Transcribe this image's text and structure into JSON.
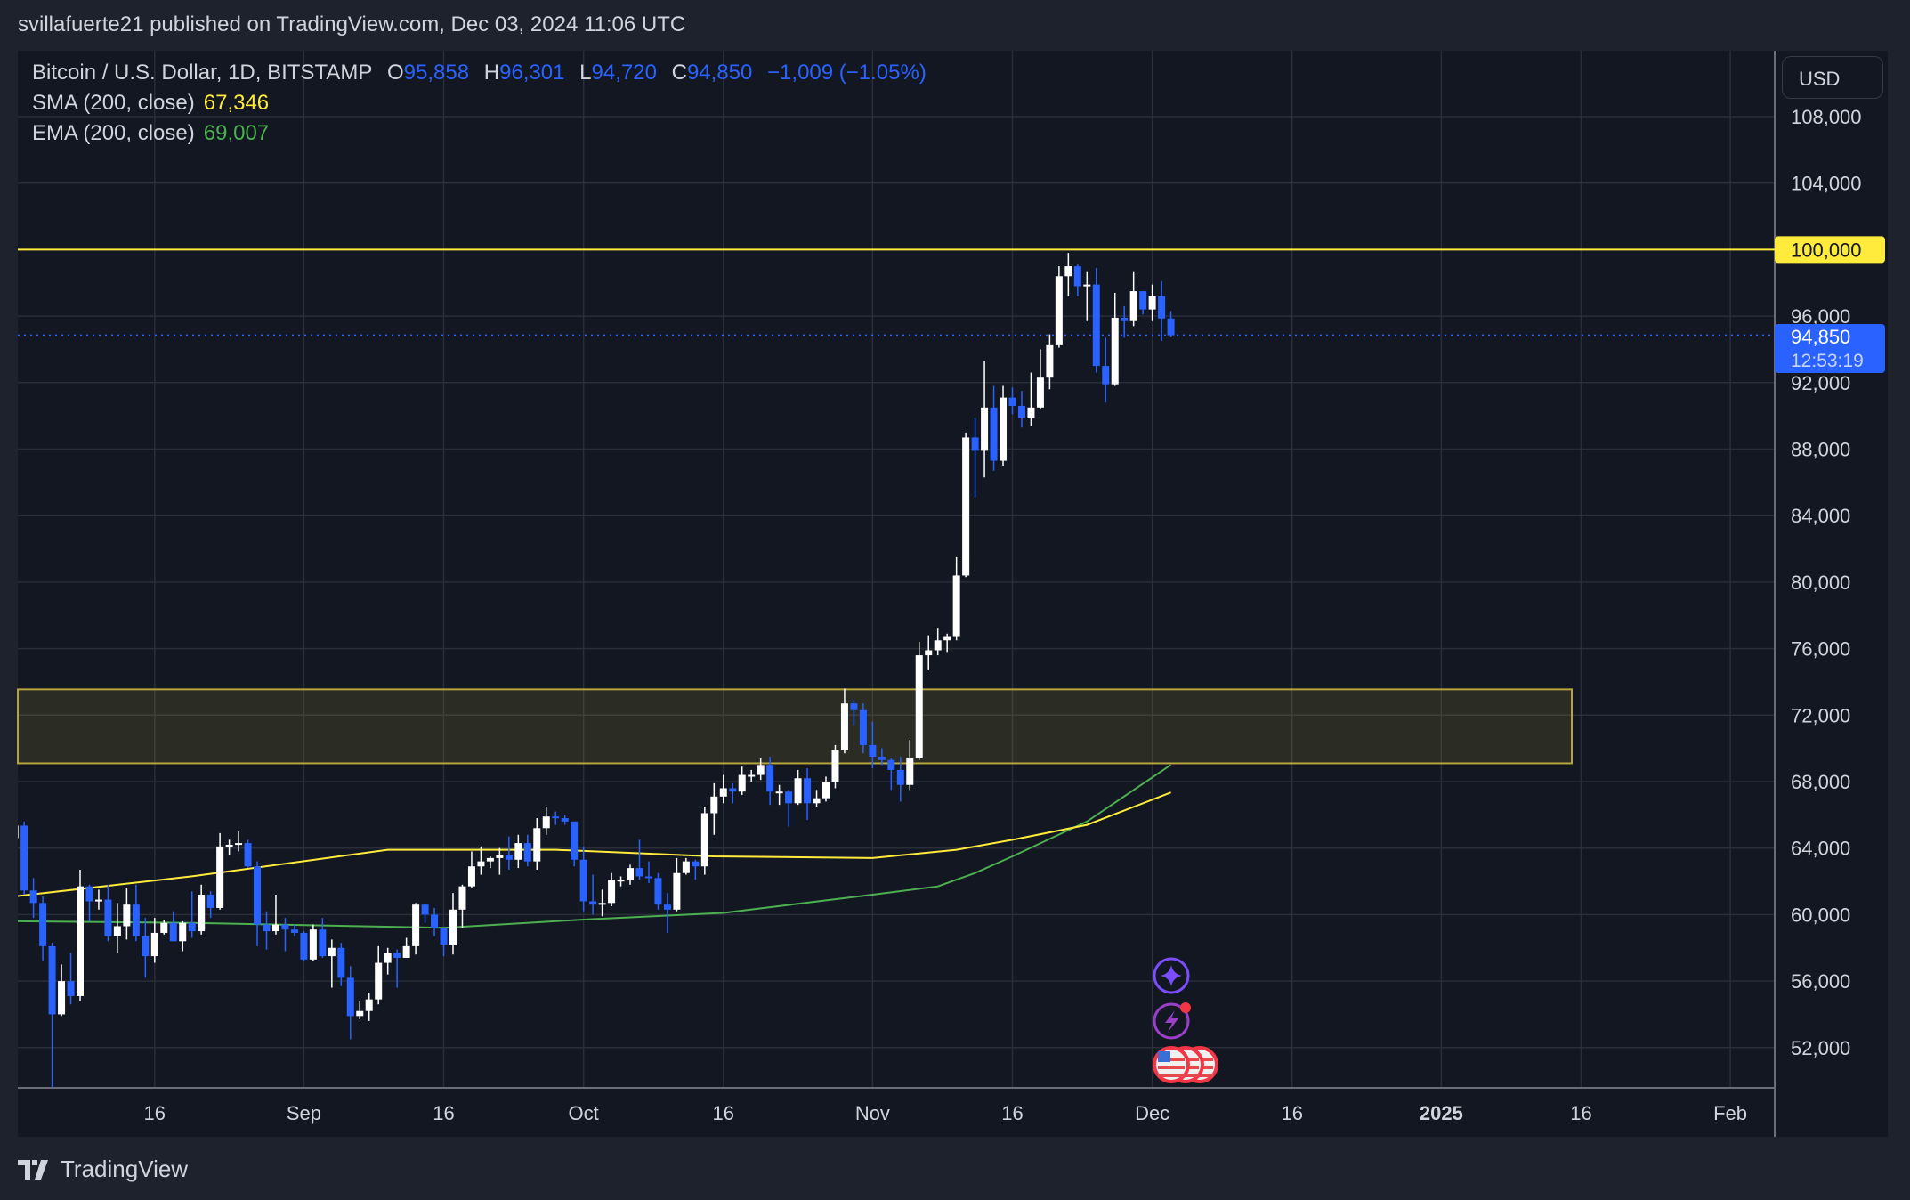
{
  "header": {
    "published": "svillafuerte21 published on TradingView.com, Dec 03, 2024 11:06 UTC"
  },
  "legend": {
    "symbol": "Bitcoin / U.S. Dollar, 1D, BITSTAMP",
    "open_label": "O",
    "open": "95,858",
    "high_label": "H",
    "high": "96,301",
    "low_label": "L",
    "low": "94,720",
    "close_label": "C",
    "close": "94,850",
    "change": "−1,009 (−1.05%)",
    "sma_label": "SMA (200, close)",
    "sma_value": "67,346",
    "ema_label": "EMA (200, close)",
    "ema_value": "69,007"
  },
  "price_axis": {
    "currency_button": "USD",
    "resistance_label": "100,000",
    "last_price_label": "94,850",
    "countdown": "12:53:19"
  },
  "footer": {
    "brand": "TradingView"
  },
  "colors": {
    "up": "#ffffff",
    "down": "#2962ff",
    "sma": "#ffeb3b",
    "ema": "#4caf50",
    "resistance": "#ffeb3b",
    "zone_border": "#b7a43a",
    "background": "#131722"
  },
  "icons": [
    "sparkle-icon",
    "lightning-icon",
    "us-flag-event-icon"
  ],
  "chart_data": {
    "type": "candlestick",
    "title": "",
    "y_ticks": [
      52000,
      56000,
      60000,
      64000,
      68000,
      72000,
      76000,
      80000,
      84000,
      88000,
      92000,
      96000,
      104000,
      108000
    ],
    "y_tick_labels": [
      "52,000",
      "56,000",
      "60,000",
      "64,000",
      "68,000",
      "72,000",
      "76,000",
      "80,000",
      "84,000",
      "88,000",
      "92,000",
      "96,000",
      "104,000",
      "108,000"
    ],
    "ylim": [
      49600,
      111200
    ],
    "x_ticks": [
      {
        "date": "2024-08-16",
        "label": "16"
      },
      {
        "date": "2024-09-01",
        "label": "Sep"
      },
      {
        "date": "2024-09-16",
        "label": "16"
      },
      {
        "date": "2024-10-01",
        "label": "Oct"
      },
      {
        "date": "2024-10-16",
        "label": "16"
      },
      {
        "date": "2024-11-01",
        "label": "Nov"
      },
      {
        "date": "2024-11-16",
        "label": "16"
      },
      {
        "date": "2024-12-01",
        "label": "Dec"
      },
      {
        "date": "2024-12-16",
        "label": "16"
      },
      {
        "date": "2025-01-01",
        "label": "2025"
      },
      {
        "date": "2025-01-16",
        "label": "16"
      },
      {
        "date": "2025-02-01",
        "label": "Feb"
      }
    ],
    "xlim": [
      "2024-08-01",
      "2025-02-10"
    ],
    "grid": true,
    "horizontal_line": {
      "price": 100000
    },
    "last_price": 94850,
    "zone": {
      "from_price": 69100,
      "to_price": 73550,
      "end_date": "2025-01-15"
    },
    "sma_200": [
      [
        "2024-08-01",
        61100
      ],
      [
        "2024-08-20",
        62300
      ],
      [
        "2024-09-10",
        63900
      ],
      [
        "2024-09-28",
        63900
      ],
      [
        "2024-10-15",
        63500
      ],
      [
        "2024-11-01",
        63400
      ],
      [
        "2024-11-10",
        63900
      ],
      [
        "2024-11-16",
        64500
      ],
      [
        "2024-11-24",
        65400
      ],
      [
        "2024-12-03",
        67346
      ]
    ],
    "ema_200": [
      [
        "2024-08-01",
        59600
      ],
      [
        "2024-08-20",
        59500
      ],
      [
        "2024-09-16",
        59200
      ],
      [
        "2024-10-01",
        59700
      ],
      [
        "2024-10-16",
        60100
      ],
      [
        "2024-11-01",
        61200
      ],
      [
        "2024-11-08",
        61700
      ],
      [
        "2024-11-12",
        62500
      ],
      [
        "2024-11-16",
        63500
      ],
      [
        "2024-11-24",
        65600
      ],
      [
        "2024-12-03",
        69007
      ]
    ],
    "candles": [
      [
        "2024-08-01",
        64600,
        65600,
        62300,
        65350
      ],
      [
        "2024-08-02",
        65350,
        65600,
        61200,
        61450
      ],
      [
        "2024-08-03",
        61450,
        62200,
        59800,
        60700
      ],
      [
        "2024-08-04",
        60700,
        61100,
        57200,
        58100
      ],
      [
        "2024-08-05",
        58100,
        58300,
        49100,
        54000
      ],
      [
        "2024-08-06",
        54000,
        57000,
        53900,
        56000
      ],
      [
        "2024-08-07",
        56000,
        57700,
        54600,
        55100
      ],
      [
        "2024-08-08",
        55100,
        62700,
        54800,
        61700
      ],
      [
        "2024-08-09",
        61700,
        61800,
        59600,
        60800
      ],
      [
        "2024-08-10",
        60800,
        61500,
        60300,
        60900
      ],
      [
        "2024-08-11",
        60900,
        61800,
        58400,
        58700
      ],
      [
        "2024-08-12",
        58700,
        60700,
        57700,
        59300
      ],
      [
        "2024-08-13",
        59300,
        61600,
        58500,
        60600
      ],
      [
        "2024-08-14",
        60600,
        61800,
        58400,
        58700
      ],
      [
        "2024-08-15",
        58700,
        59800,
        56200,
        57500
      ],
      [
        "2024-08-16",
        57500,
        59800,
        57100,
        58900
      ],
      [
        "2024-08-17",
        58900,
        59700,
        58800,
        59500
      ],
      [
        "2024-08-18",
        59500,
        60200,
        58400,
        58400
      ],
      [
        "2024-08-19",
        58400,
        59600,
        57800,
        59500
      ],
      [
        "2024-08-20",
        59500,
        61400,
        58600,
        59000
      ],
      [
        "2024-08-21",
        59000,
        61800,
        58800,
        61200
      ],
      [
        "2024-08-22",
        61200,
        61400,
        59800,
        60400
      ],
      [
        "2024-08-23",
        60400,
        64900,
        60300,
        64100
      ],
      [
        "2024-08-24",
        64100,
        64500,
        63600,
        64200
      ],
      [
        "2024-08-25",
        64200,
        65000,
        63800,
        64300
      ],
      [
        "2024-08-26",
        64300,
        64500,
        62800,
        62900
      ],
      [
        "2024-08-27",
        62900,
        63200,
        58100,
        59400
      ],
      [
        "2024-08-28",
        59400,
        60200,
        57900,
        59000
      ],
      [
        "2024-08-29",
        59000,
        61200,
        58800,
        59400
      ],
      [
        "2024-08-30",
        59400,
        59800,
        57800,
        59100
      ],
      [
        "2024-08-31",
        59100,
        59400,
        58700,
        58900
      ],
      [
        "2024-09-01",
        58900,
        59000,
        57200,
        57300
      ],
      [
        "2024-09-02",
        57300,
        59400,
        57200,
        59100
      ],
      [
        "2024-09-03",
        59100,
        59800,
        57400,
        57500
      ],
      [
        "2024-09-04",
        57500,
        58500,
        55600,
        58000
      ],
      [
        "2024-09-05",
        58000,
        58300,
        55700,
        56200
      ],
      [
        "2024-09-06",
        56200,
        56900,
        52500,
        53900
      ],
      [
        "2024-09-07",
        53900,
        54800,
        53700,
        54200
      ],
      [
        "2024-09-08",
        54200,
        55300,
        53600,
        54900
      ],
      [
        "2024-09-09",
        54900,
        58100,
        54600,
        57100
      ],
      [
        "2024-09-10",
        57100,
        58000,
        56400,
        57700
      ],
      [
        "2024-09-11",
        57700,
        57900,
        55600,
        57400
      ],
      [
        "2024-09-12",
        57400,
        58600,
        57400,
        58100
      ],
      [
        "2024-09-13",
        58100,
        60700,
        57600,
        60600
      ],
      [
        "2024-09-14",
        60600,
        60600,
        59500,
        60000
      ],
      [
        "2024-09-15",
        60000,
        60400,
        58700,
        59200
      ],
      [
        "2024-09-16",
        59200,
        59200,
        57500,
        58200
      ],
      [
        "2024-09-17",
        58200,
        61300,
        57600,
        60300
      ],
      [
        "2024-09-18",
        60300,
        61800,
        59200,
        61700
      ],
      [
        "2024-09-19",
        61700,
        63800,
        61600,
        62900
      ],
      [
        "2024-09-20",
        62900,
        64100,
        62400,
        63200
      ],
      [
        "2024-09-21",
        63200,
        63500,
        62800,
        63400
      ],
      [
        "2024-09-22",
        63400,
        64000,
        62400,
        63600
      ],
      [
        "2024-09-23",
        63600,
        64700,
        62700,
        63300
      ],
      [
        "2024-09-24",
        63300,
        64800,
        62800,
        64300
      ],
      [
        "2024-09-25",
        64300,
        64800,
        62900,
        63200
      ],
      [
        "2024-09-26",
        63200,
        65800,
        62700,
        65200
      ],
      [
        "2024-09-27",
        65200,
        66500,
        64800,
        65900
      ],
      [
        "2024-09-28",
        65900,
        66200,
        65400,
        65800
      ],
      [
        "2024-09-29",
        65800,
        66000,
        65400,
        65600
      ],
      [
        "2024-09-30",
        65600,
        65600,
        62900,
        63300
      ],
      [
        "2024-10-01",
        63300,
        64100,
        60200,
        60800
      ],
      [
        "2024-10-02",
        60800,
        62400,
        60000,
        60600
      ],
      [
        "2024-10-03",
        60600,
        61500,
        59900,
        60700
      ],
      [
        "2024-10-04",
        60700,
        62500,
        60500,
        62100
      ],
      [
        "2024-10-05",
        62100,
        62300,
        61700,
        62100
      ],
      [
        "2024-10-06",
        62100,
        63000,
        61800,
        62800
      ],
      [
        "2024-10-07",
        62800,
        64500,
        62100,
        62300
      ],
      [
        "2024-10-08",
        62300,
        63200,
        61900,
        62200
      ],
      [
        "2024-10-09",
        62200,
        62500,
        60300,
        60600
      ],
      [
        "2024-10-10",
        60600,
        61300,
        58900,
        60300
      ],
      [
        "2024-10-11",
        60300,
        63400,
        60200,
        62500
      ],
      [
        "2024-10-12",
        62500,
        63400,
        62400,
        63200
      ],
      [
        "2024-10-13",
        63200,
        63300,
        62100,
        62900
      ],
      [
        "2024-10-14",
        62900,
        66500,
        62400,
        66100
      ],
      [
        "2024-10-15",
        66100,
        67900,
        64800,
        67100
      ],
      [
        "2024-10-16",
        67100,
        68400,
        66700,
        67600
      ],
      [
        "2024-10-17",
        67600,
        67900,
        66700,
        67400
      ],
      [
        "2024-10-18",
        67400,
        68900,
        67200,
        68400
      ],
      [
        "2024-10-19",
        68400,
        68700,
        68000,
        68400
      ],
      [
        "2024-10-20",
        68400,
        69400,
        68100,
        69000
      ],
      [
        "2024-10-21",
        69000,
        69500,
        66600,
        67400
      ],
      [
        "2024-10-22",
        67400,
        67800,
        66600,
        67400
      ],
      [
        "2024-10-23",
        67400,
        67500,
        65300,
        66700
      ],
      [
        "2024-10-24",
        66700,
        68700,
        66600,
        68200
      ],
      [
        "2024-10-25",
        68200,
        68800,
        65700,
        66700
      ],
      [
        "2024-10-26",
        66700,
        67500,
        66500,
        67000
      ],
      [
        "2024-10-27",
        67000,
        68300,
        66800,
        68000
      ],
      [
        "2024-10-28",
        68000,
        70200,
        67600,
        69900
      ],
      [
        "2024-10-29",
        69900,
        73600,
        69700,
        72700
      ],
      [
        "2024-10-30",
        72700,
        72900,
        71400,
        72300
      ],
      [
        "2024-10-31",
        72300,
        72700,
        69700,
        70200
      ],
      [
        "2024-11-01",
        70200,
        71600,
        68800,
        69500
      ],
      [
        "2024-11-02",
        69500,
        70000,
        69000,
        69300
      ],
      [
        "2024-11-03",
        69300,
        69400,
        67500,
        68700
      ],
      [
        "2024-11-04",
        68700,
        69500,
        66800,
        67800
      ],
      [
        "2024-11-05",
        67800,
        70500,
        67500,
        69400
      ],
      [
        "2024-11-06",
        69400,
        76400,
        69300,
        75600
      ],
      [
        "2024-11-07",
        75600,
        76800,
        74700,
        75900
      ],
      [
        "2024-11-08",
        75900,
        77200,
        75600,
        76500
      ],
      [
        "2024-11-09",
        76500,
        76900,
        75800,
        76700
      ],
      [
        "2024-11-10",
        76700,
        81500,
        76500,
        80400
      ],
      [
        "2024-11-11",
        80400,
        89000,
        80300,
        88700
      ],
      [
        "2024-11-12",
        88700,
        89900,
        85100,
        87900
      ],
      [
        "2024-11-13",
        87900,
        93300,
        86300,
        90500
      ],
      [
        "2024-11-14",
        90500,
        91800,
        86700,
        87300
      ],
      [
        "2024-11-15",
        87300,
        91800,
        87000,
        91100
      ],
      [
        "2024-11-16",
        91100,
        91700,
        90100,
        90600
      ],
      [
        "2024-11-17",
        90600,
        91500,
        89300,
        89900
      ],
      [
        "2024-11-18",
        89900,
        92600,
        89400,
        90500
      ],
      [
        "2024-11-19",
        90500,
        94000,
        90400,
        92300
      ],
      [
        "2024-11-20",
        92300,
        94900,
        91600,
        94300
      ],
      [
        "2024-11-21",
        94300,
        99000,
        94100,
        98400
      ],
      [
        "2024-11-22",
        98400,
        99800,
        97200,
        99000
      ],
      [
        "2024-11-23",
        99000,
        99100,
        97200,
        97800
      ],
      [
        "2024-11-24",
        97800,
        98700,
        95700,
        97900
      ],
      [
        "2024-11-25",
        97900,
        98900,
        92600,
        93000
      ],
      [
        "2024-11-26",
        93000,
        94700,
        90800,
        91900
      ],
      [
        "2024-11-27",
        91900,
        97400,
        91800,
        95900
      ],
      [
        "2024-11-28",
        95900,
        96600,
        94700,
        95700
      ],
      [
        "2024-11-29",
        95700,
        98700,
        95400,
        97500
      ],
      [
        "2024-11-30",
        97500,
        97500,
        96100,
        96400
      ],
      [
        "2024-12-01",
        96400,
        97900,
        95700,
        97200
      ],
      [
        "2024-12-02",
        97200,
        98100,
        94500,
        95858
      ],
      [
        "2024-12-03",
        95858,
        96301,
        94720,
        94850
      ]
    ]
  }
}
